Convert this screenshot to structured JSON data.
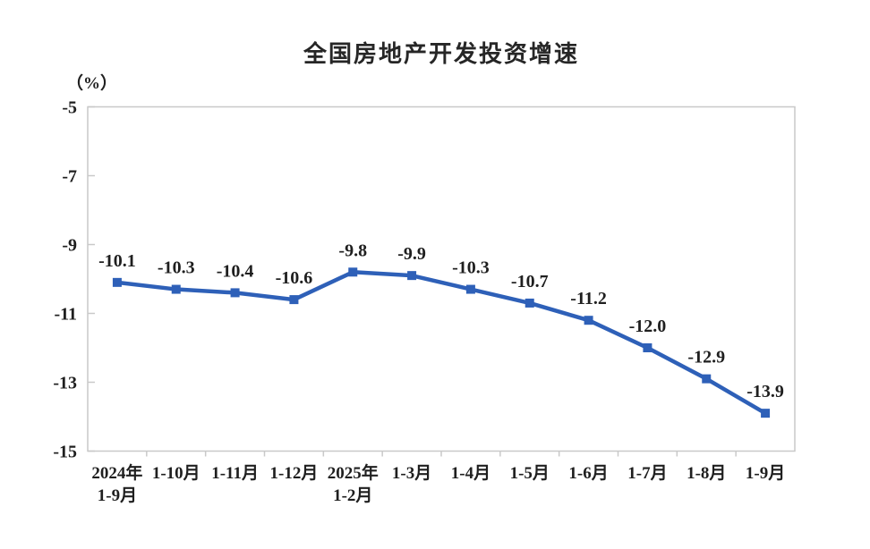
{
  "chart_data": {
    "type": "line",
    "title": "全国房地产开发投资增速",
    "unit_label": "（%）",
    "categories": [
      "2024年\n1-9月",
      "1-10月",
      "1-11月",
      "1-12月",
      "2025年\n1-2月",
      "1-3月",
      "1-4月",
      "1-5月",
      "1-6月",
      "1-7月",
      "1-8月",
      "1-9月"
    ],
    "values": [
      -10.1,
      -10.3,
      -10.4,
      -10.6,
      -9.8,
      -9.9,
      -10.3,
      -10.7,
      -11.2,
      -12.0,
      -12.9,
      -13.9
    ],
    "data_labels": [
      "-10.1",
      "-10.3",
      "-10.4",
      "-10.6",
      "-9.8",
      "-9.9",
      "-10.3",
      "-10.7",
      "-11.2",
      "-12.0",
      "-12.9",
      "-13.9"
    ],
    "y_ticks": [
      -5,
      -7,
      -9,
      -11,
      -13,
      -15
    ],
    "ylim": [
      -15,
      -5
    ],
    "xlabel": "",
    "ylabel": "（%）",
    "grid": false,
    "legend": "none",
    "marker": "square",
    "colors": {
      "line": "#2e60b8",
      "marker": "#2e60b8",
      "axis": "#c9c9c9",
      "text": "#1f1f1f"
    }
  }
}
